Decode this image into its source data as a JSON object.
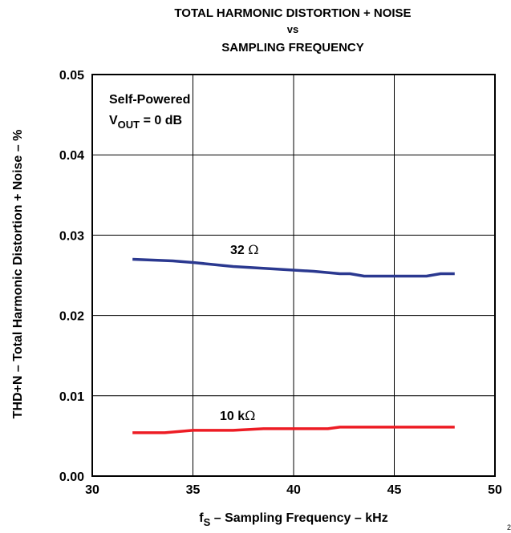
{
  "chart_data": {
    "type": "line",
    "title_lines": [
      "TOTAL HARMONIC DISTORTION + NOISE",
      "vs",
      "SAMPLING FREQUENCY"
    ],
    "xlabel": {
      "main": "f",
      "sub": "S",
      "rest": " – Sampling Frequency – kHz"
    },
    "ylabel": "THD+N – Total Harmonic Distortion + Noise – %",
    "xlim": [
      30,
      50
    ],
    "ylim": [
      0,
      0.05
    ],
    "x_ticks": [
      "30",
      "35",
      "40",
      "45",
      "50"
    ],
    "y_ticks": [
      "0.00",
      "0.01",
      "0.02",
      "0.03",
      "0.04",
      "0.05"
    ],
    "grid": true,
    "annotations": {
      "line1": "Self-Powered",
      "line2": {
        "main": "V",
        "sub": "OUT",
        "rest": " = 0 dB"
      }
    },
    "series": [
      {
        "name": "32 Ω",
        "label_main": "32 ",
        "label_unit": "Ω",
        "color": "#2b3990",
        "x": [
          32,
          34,
          35,
          37,
          39,
          41,
          42.3,
          42.8,
          43.5,
          44,
          45,
          46,
          46.6,
          47.3,
          48
        ],
        "y": [
          0.027,
          0.0268,
          0.0266,
          0.0261,
          0.0258,
          0.0255,
          0.0252,
          0.0252,
          0.0249,
          0.0249,
          0.0249,
          0.0249,
          0.0249,
          0.0252,
          0.0252
        ]
      },
      {
        "name": "10 kΩ",
        "label_main": "10 k",
        "label_unit": "Ω",
        "color": "#ed1c24",
        "x": [
          32,
          33.6,
          35,
          37,
          38.5,
          40,
          41.7,
          42.3,
          44,
          46,
          48
        ],
        "y": [
          0.0054,
          0.0054,
          0.0057,
          0.0057,
          0.0059,
          0.0059,
          0.0059,
          0.0061,
          0.0061,
          0.0061,
          0.0061
        ]
      }
    ]
  },
  "corner_mark": "2"
}
